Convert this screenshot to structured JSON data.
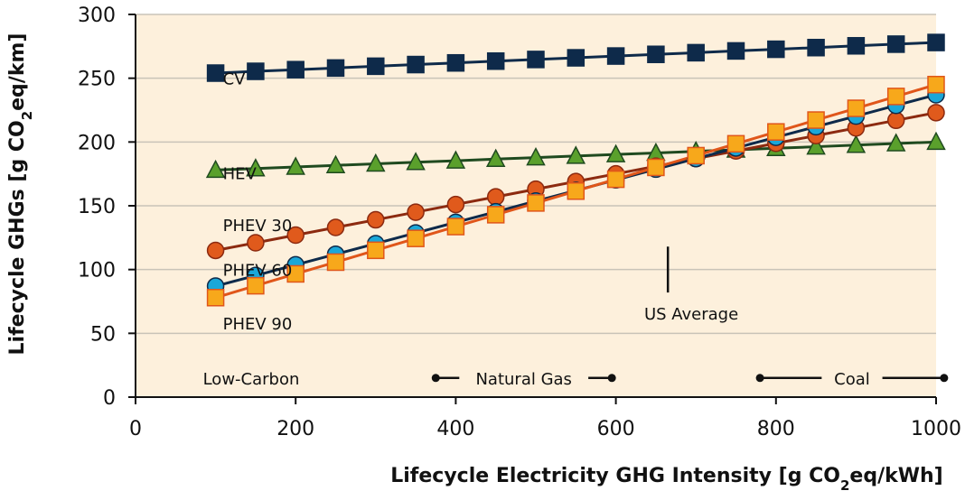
{
  "chart_data": {
    "type": "line",
    "xlabel_main": "Lifecycle Electricity GHG Intensity [g CO",
    "xlabel_sub": "2",
    "xlabel_end": "eq/kWh]",
    "ylabel_main": "Lifecycle GHGs [g CO",
    "ylabel_sub": "2",
    "ylabel_end": "eq/km]",
    "xlim": [
      0,
      1000
    ],
    "ylim": [
      0,
      300
    ],
    "xticks": [
      0,
      200,
      400,
      600,
      800,
      1000
    ],
    "yticks": [
      0,
      50,
      100,
      150,
      200,
      250,
      300
    ],
    "grid": "horizontal",
    "background": "#fdf0dc",
    "x": [
      100,
      150,
      200,
      250,
      300,
      350,
      400,
      450,
      500,
      550,
      600,
      650,
      700,
      750,
      800,
      850,
      900,
      950,
      1000
    ],
    "series": [
      {
        "name": "CV",
        "marker": "square",
        "line_color": "#0e2a4a",
        "fill": "#0e2a4a",
        "edge": "#0e2a4a",
        "values": [
          254,
          255.4,
          256.7,
          258,
          259.4,
          260.7,
          262,
          263.4,
          264.7,
          266,
          267.4,
          268.7,
          270,
          271.4,
          272.7,
          274,
          275.4,
          276.7,
          278
        ]
      },
      {
        "name": "HEV",
        "marker": "triangle",
        "line_color": "#1f4a1f",
        "fill": "#5aa02c",
        "edge": "#1f4a1f",
        "values": [
          178,
          179.2,
          180.4,
          181.7,
          182.9,
          184.1,
          185.3,
          186.6,
          187.8,
          189,
          190.2,
          191.4,
          192.7,
          193.9,
          195.1,
          196.3,
          197.6,
          198.8,
          200
        ]
      },
      {
        "name": "PHEV 30",
        "marker": "circle",
        "line_color": "#8c2a10",
        "fill": "#e05a1c",
        "edge": "#8c2a10",
        "values": [
          115,
          121,
          127,
          133,
          139,
          145,
          151,
          157,
          163,
          169,
          175,
          181,
          187,
          193,
          199,
          205,
          211,
          217,
          223
        ]
      },
      {
        "name": "PHEV 60",
        "marker": "circle",
        "line_color": "#0e2a4a",
        "fill": "#1aa7d8",
        "edge": "#0e2a4a",
        "values": [
          87,
          95.3,
          103.7,
          112,
          120.3,
          128.7,
          137,
          145.3,
          153.7,
          162,
          170.3,
          178.7,
          187,
          195.3,
          203.7,
          212,
          220.3,
          228.7,
          237
        ]
      },
      {
        "name": "PHEV 90",
        "marker": "square",
        "line_color": "#e0561a",
        "fill": "#f7a81b",
        "edge": "#e0561a",
        "values": [
          78,
          87.3,
          96.6,
          105.8,
          115.1,
          124.4,
          133.7,
          143,
          152.2,
          161.5,
          170.8,
          180.1,
          189.3,
          198.6,
          207.9,
          217.2,
          226.4,
          235.7,
          245
        ]
      }
    ],
    "series_labels": [
      {
        "text": "CV",
        "x_value": 100,
        "y_value": 250
      },
      {
        "text": "HEV",
        "x_value": 100,
        "y_value": 176
      },
      {
        "text": "PHEV 30",
        "x_value": 100,
        "y_value": 135
      },
      {
        "text": "PHEV 60",
        "x_value": 100,
        "y_value": 100
      },
      {
        "text": "PHEV 90",
        "x_value": 100,
        "y_value": 58
      }
    ],
    "annotations": {
      "us_average": {
        "text": "US Average",
        "x_value": 665,
        "y_from": 118,
        "y_to": 82
      },
      "low_carbon": {
        "text": "Low-Carbon",
        "x_value": 100,
        "y_value": 15
      },
      "natural_gas": {
        "text": "Natural Gas",
        "x_from": 375,
        "x_to": 595,
        "y_value": 15
      },
      "coal": {
        "text": "Coal",
        "x_from": 780,
        "x_to": 1010,
        "y_value": 15
      }
    }
  }
}
